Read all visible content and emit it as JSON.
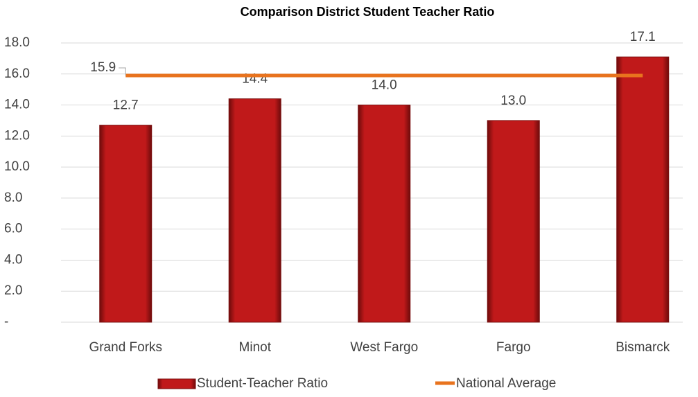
{
  "chart_data": {
    "type": "bar",
    "title": "Comparison District Student Teacher Ratio",
    "categories": [
      "Grand Forks",
      "Minot",
      "West Fargo",
      "Fargo",
      "Bismarck"
    ],
    "series": [
      {
        "name": "Student-Teacher Ratio",
        "type": "bar",
        "color": "#c0191a",
        "values": [
          12.7,
          14.4,
          14.0,
          13.0,
          17.1
        ],
        "value_labels": [
          "12.7",
          "14.4",
          "14.0",
          "13.0",
          "17.1"
        ]
      },
      {
        "name": "National Average",
        "type": "line",
        "color": "#e8731e",
        "values": [
          15.9,
          15.9,
          15.9,
          15.9,
          15.9
        ],
        "value_labels": [
          "15.9",
          null,
          null,
          null,
          null
        ]
      }
    ],
    "ylim": [
      0,
      18
    ],
    "yticks": [
      {
        "value": 0,
        "label": "-"
      },
      {
        "value": 2,
        "label": "2.0"
      },
      {
        "value": 4,
        "label": "4.0"
      },
      {
        "value": 6,
        "label": "6.0"
      },
      {
        "value": 8,
        "label": "8.0"
      },
      {
        "value": 10,
        "label": "10.0"
      },
      {
        "value": 12,
        "label": "12.0"
      },
      {
        "value": 14,
        "label": "14.0"
      },
      {
        "value": 16,
        "label": "16.0"
      },
      {
        "value": 18,
        "label": "18.0"
      }
    ],
    "grid": true,
    "legend": "bottom"
  }
}
